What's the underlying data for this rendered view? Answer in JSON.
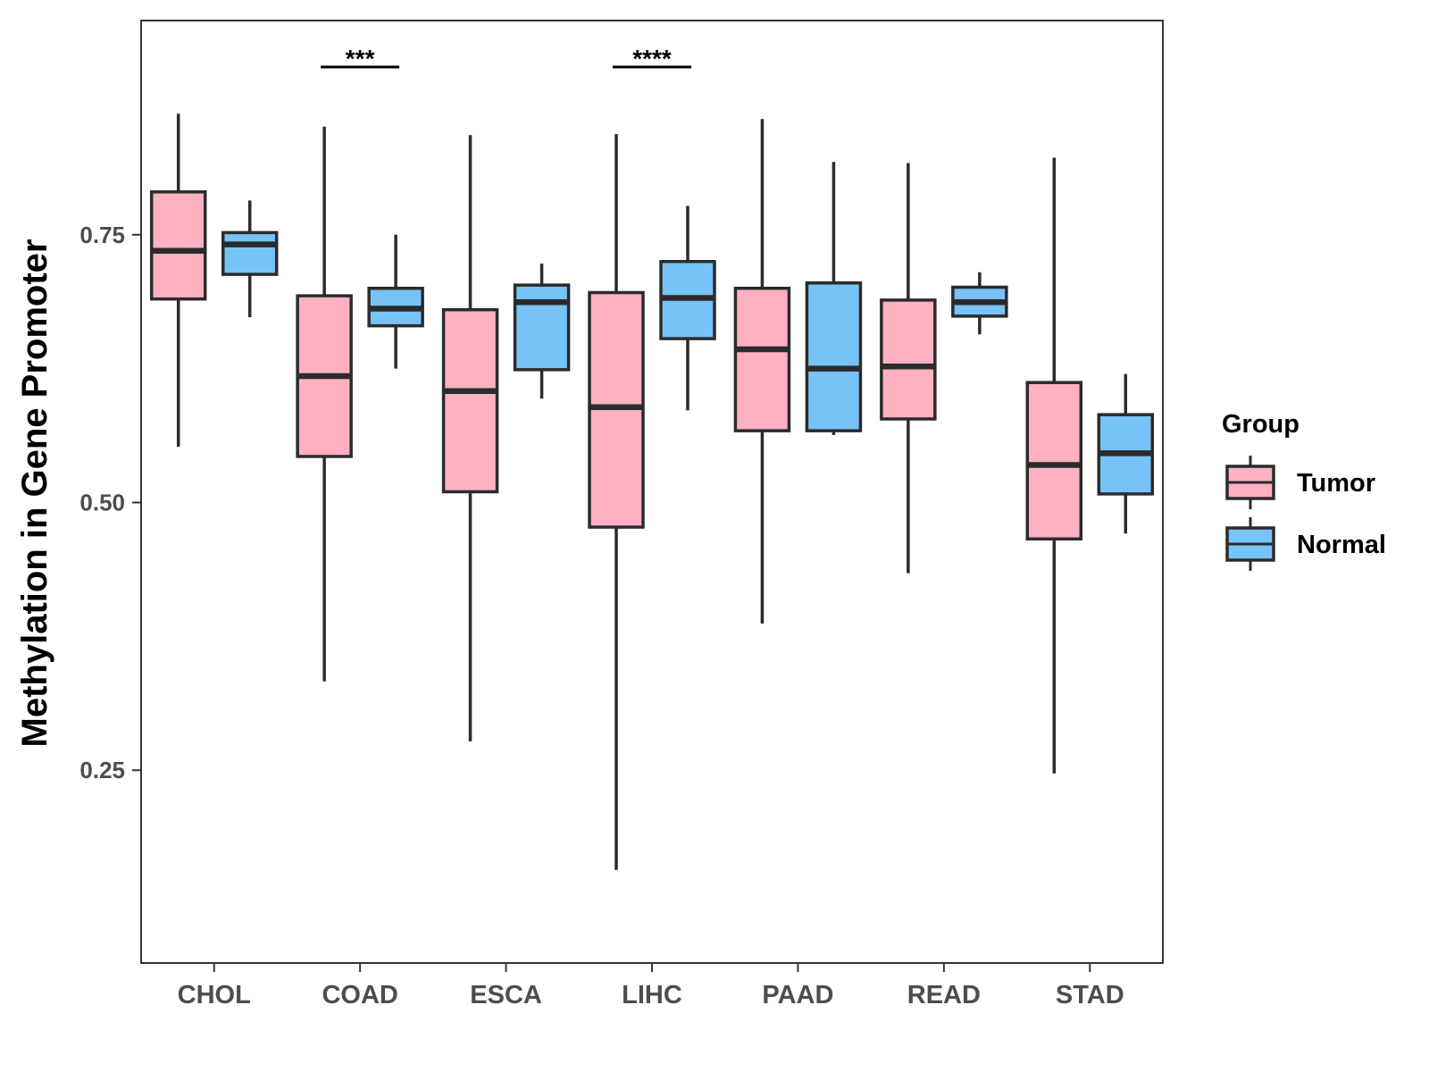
{
  "chart_data": {
    "type": "boxplot",
    "title": "",
    "xlabel": "",
    "ylabel": "Methylation in Gene Promoter",
    "ylim": [
      0.07,
      0.95
    ],
    "yticks": [
      0.25,
      0.5,
      0.75
    ],
    "ytick_labels": [
      "0.25",
      "0.50",
      "0.75"
    ],
    "categories": [
      "CHOL",
      "COAD",
      "ESCA",
      "LIHC",
      "PAAD",
      "READ",
      "STAD"
    ],
    "series": [
      {
        "name": "Tumor",
        "color": "#FFB0C1",
        "boxes": [
          {
            "min": 0.552,
            "q1": 0.69,
            "median": 0.735,
            "q3": 0.79,
            "max": 0.863
          },
          {
            "min": 0.333,
            "q1": 0.543,
            "median": 0.618,
            "q3": 0.693,
            "max": 0.851
          },
          {
            "min": 0.277,
            "q1": 0.51,
            "median": 0.604,
            "q3": 0.68,
            "max": 0.843
          },
          {
            "min": 0.157,
            "q1": 0.477,
            "median": 0.589,
            "q3": 0.696,
            "max": 0.844
          },
          {
            "min": 0.387,
            "q1": 0.567,
            "median": 0.643,
            "q3": 0.7,
            "max": 0.858
          },
          {
            "min": 0.434,
            "q1": 0.578,
            "median": 0.627,
            "q3": 0.689,
            "max": 0.817
          },
          {
            "min": 0.247,
            "q1": 0.466,
            "median": 0.535,
            "q3": 0.612,
            "max": 0.822
          }
        ]
      },
      {
        "name": "Normal",
        "color": "#77C3F7",
        "boxes": [
          {
            "min": 0.673,
            "q1": 0.713,
            "median": 0.741,
            "q3": 0.752,
            "max": 0.782
          },
          {
            "min": 0.625,
            "q1": 0.665,
            "median": 0.681,
            "q3": 0.7,
            "max": 0.75
          },
          {
            "min": 0.597,
            "q1": 0.624,
            "median": 0.687,
            "q3": 0.703,
            "max": 0.723
          },
          {
            "min": 0.586,
            "q1": 0.653,
            "median": 0.691,
            "q3": 0.725,
            "max": 0.777
          },
          {
            "min": 0.563,
            "q1": 0.567,
            "median": 0.625,
            "q3": 0.705,
            "max": 0.818
          },
          {
            "min": 0.657,
            "q1": 0.674,
            "median": 0.687,
            "q3": 0.701,
            "max": 0.715
          },
          {
            "min": 0.471,
            "q1": 0.508,
            "median": 0.546,
            "q3": 0.582,
            "max": 0.62
          }
        ]
      }
    ],
    "significance": [
      {
        "category": "COAD",
        "label": "***"
      },
      {
        "category": "LIHC",
        "label": "****"
      }
    ],
    "legend": {
      "title": "Group",
      "entries": [
        "Tumor",
        "Normal"
      ],
      "placement": "right"
    },
    "grid": false
  }
}
